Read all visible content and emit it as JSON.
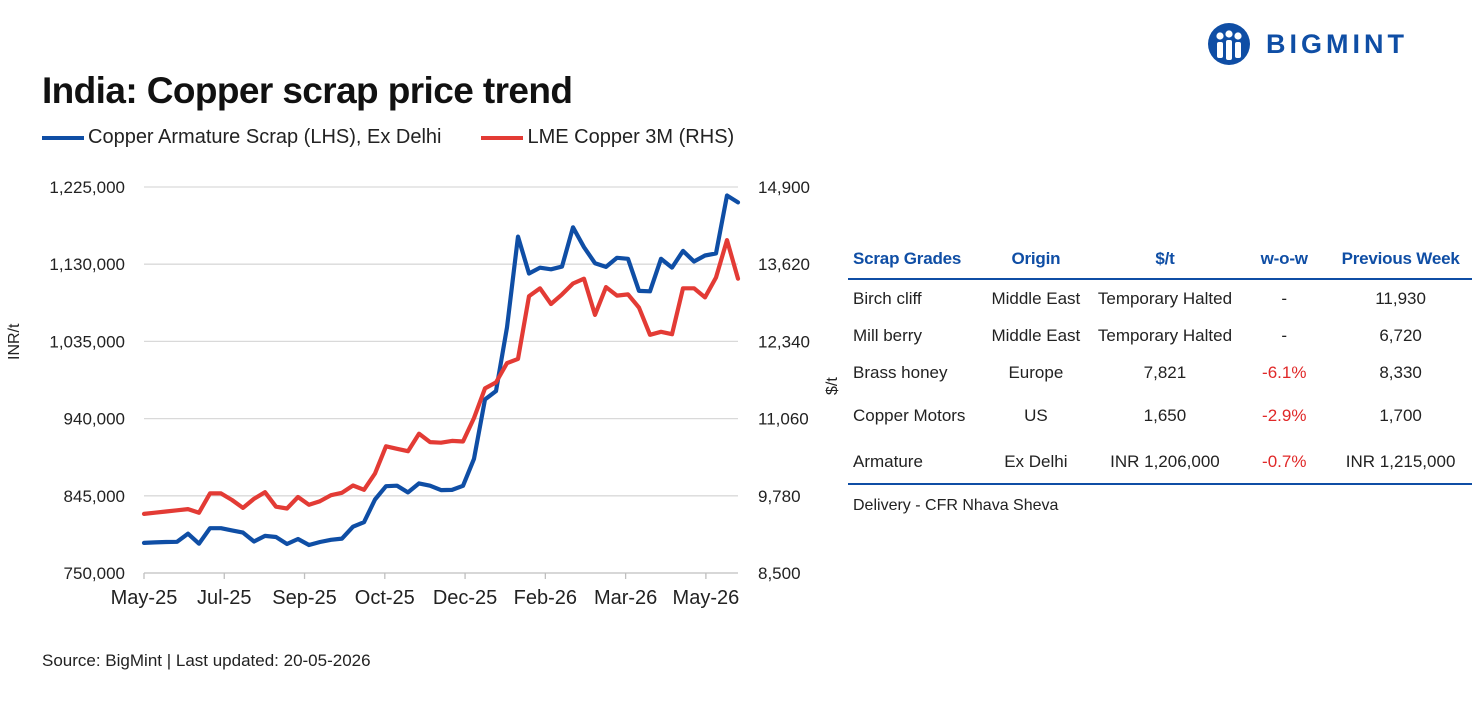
{
  "brand": {
    "name": "BIGMINT",
    "color": "#0f4ea5"
  },
  "title": "India: Copper scrap price trend",
  "source": "Source: BigMint | Last updated: 20-05-2026",
  "chart_data": {
    "type": "line",
    "title": "India: Copper scrap price trend",
    "legend_position": "top-left",
    "grid": true,
    "x_labels": [
      "May-25",
      "Jul-25",
      "Sep-25",
      "Oct-25",
      "Dec-25",
      "Feb-26",
      "Mar-26",
      "May-26"
    ],
    "y_left": {
      "label": "INR/t",
      "lim": [
        750000,
        1225000
      ],
      "ticks": [
        "750,000",
        "845,000",
        "940,000",
        "1,035,000",
        "1,130,000",
        "1,225,000"
      ]
    },
    "y_right": {
      "label": "$/t",
      "lim": [
        8500,
        14900
      ],
      "ticks": [
        "8,500",
        "9,780",
        "11,060",
        "12,340",
        "13,620",
        "14,900"
      ]
    },
    "series": [
      {
        "name": "Copper Armature Scrap (LHS), Ex Delhi",
        "axis": "left",
        "color": "#0f4ea5",
        "values": [
          787000,
          787700,
          788100,
          788400,
          798400,
          786000,
          805100,
          805100,
          802400,
          799700,
          788800,
          795600,
          794300,
          785700,
          791800,
          784500,
          788100,
          790900,
          792300,
          807000,
          812500,
          840400,
          856800,
          857400,
          849200,
          860200,
          857400,
          852000,
          852300,
          857300,
          890500,
          963600,
          973900,
          1052200,
          1164000,
          1118600,
          1125700,
          1123700,
          1127100,
          1175400,
          1150900,
          1131200,
          1126700,
          1137900,
          1136600,
          1097200,
          1096600,
          1136600,
          1125800,
          1146400,
          1133300,
          1140700,
          1143300,
          1214600,
          1206000
        ]
      },
      {
        "name": "LME Copper 3M (RHS)",
        "axis": "right",
        "color": "#e33b35",
        "values": [
          9480,
          9500,
          9520,
          9540,
          9560,
          9500,
          9820,
          9820,
          9710,
          9580,
          9730,
          9840,
          9600,
          9570,
          9760,
          9630,
          9690,
          9790,
          9830,
          9950,
          9880,
          10150,
          10600,
          10560,
          10520,
          10810,
          10670,
          10660,
          10690,
          10680,
          11070,
          11560,
          11660,
          11980,
          12050,
          13090,
          13220,
          12960,
          13120,
          13300,
          13380,
          12780,
          13240,
          13100,
          13120,
          12900,
          12450,
          12500,
          12460,
          13220,
          13220,
          13070,
          13400,
          14020,
          13380
        ]
      }
    ]
  },
  "table": {
    "headers": [
      "Scrap Grades",
      "Origin",
      "$/t",
      "w-o-w",
      "Previous Week"
    ],
    "rows": [
      {
        "grade": "Birch cliff",
        "origin": "Middle East",
        "price": "Temporary Halted",
        "wow": "-",
        "prev": "11,930"
      },
      {
        "grade": "Mill berry",
        "origin": "Middle East",
        "price": "Temporary Halted",
        "wow": "-",
        "prev": "6,720"
      },
      {
        "grade": "Brass honey",
        "origin": "Europe",
        "price": "7,821",
        "wow": "-6.1%",
        "prev": "8,330"
      },
      {
        "grade": "Copper Motors",
        "origin": "US",
        "price": "1,650",
        "wow": "-2.9%",
        "prev": "1,700"
      },
      {
        "grade": "Armature",
        "origin": "Ex Delhi",
        "price": "INR  1,206,000",
        "wow": "-0.7%",
        "prev": "INR  1,215,000"
      }
    ],
    "note": "Delivery - CFR Nhava Sheva"
  }
}
